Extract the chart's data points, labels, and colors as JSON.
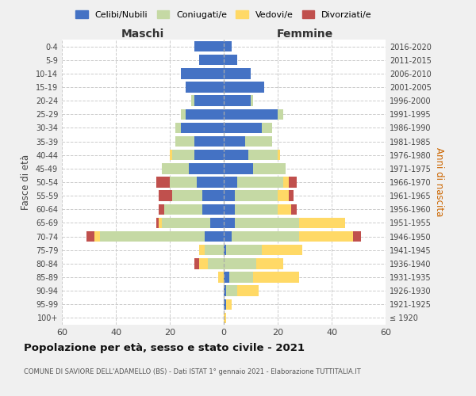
{
  "age_groups": [
    "100+",
    "95-99",
    "90-94",
    "85-89",
    "80-84",
    "75-79",
    "70-74",
    "65-69",
    "60-64",
    "55-59",
    "50-54",
    "45-49",
    "40-44",
    "35-39",
    "30-34",
    "25-29",
    "20-24",
    "15-19",
    "10-14",
    "5-9",
    "0-4"
  ],
  "birth_years": [
    "≤ 1920",
    "1921-1925",
    "1926-1930",
    "1931-1935",
    "1936-1940",
    "1941-1945",
    "1946-1950",
    "1951-1955",
    "1956-1960",
    "1961-1965",
    "1966-1970",
    "1971-1975",
    "1976-1980",
    "1981-1985",
    "1986-1990",
    "1991-1995",
    "1996-2000",
    "2001-2005",
    "2006-2010",
    "2011-2015",
    "2016-2020"
  ],
  "male": {
    "celibe": [
      0,
      0,
      0,
      0,
      0,
      0,
      7,
      5,
      8,
      8,
      10,
      13,
      11,
      11,
      16,
      14,
      11,
      14,
      16,
      9,
      11
    ],
    "coniugato": [
      0,
      0,
      0,
      0,
      6,
      7,
      39,
      18,
      14,
      11,
      10,
      10,
      8,
      7,
      2,
      2,
      1,
      0,
      0,
      0,
      0
    ],
    "vedovo": [
      0,
      0,
      0,
      2,
      3,
      2,
      2,
      1,
      0,
      0,
      0,
      0,
      1,
      0,
      0,
      0,
      0,
      0,
      0,
      0,
      0
    ],
    "divorziato": [
      0,
      0,
      0,
      0,
      2,
      0,
      3,
      1,
      2,
      5,
      5,
      0,
      0,
      0,
      0,
      0,
      0,
      0,
      0,
      0,
      0
    ]
  },
  "female": {
    "nubile": [
      0,
      1,
      1,
      2,
      0,
      1,
      3,
      4,
      4,
      4,
      5,
      11,
      9,
      8,
      14,
      20,
      10,
      15,
      10,
      5,
      3
    ],
    "coniugata": [
      0,
      0,
      4,
      9,
      12,
      13,
      25,
      24,
      16,
      16,
      17,
      12,
      11,
      10,
      4,
      2,
      1,
      0,
      0,
      0,
      0
    ],
    "vedova": [
      1,
      2,
      8,
      17,
      10,
      15,
      20,
      17,
      5,
      4,
      2,
      0,
      1,
      0,
      0,
      0,
      0,
      0,
      0,
      0,
      0
    ],
    "divorziata": [
      0,
      0,
      0,
      0,
      0,
      0,
      3,
      0,
      2,
      2,
      3,
      0,
      0,
      0,
      0,
      0,
      0,
      0,
      0,
      0,
      0
    ]
  },
  "colors": {
    "celibe_nubile": "#4472C4",
    "coniugato_a": "#C5D9A4",
    "vedovo_a": "#FFD966",
    "divorziato_a": "#C0504D"
  },
  "title": "Popolazione per età, sesso e stato civile - 2021",
  "subtitle": "COMUNE DI SAVIORE DELL'ADAMELLO (BS) - Dati ISTAT 1° gennaio 2021 - Elaborazione TUTTITALIA.IT",
  "xlabel_left": "Maschi",
  "xlabel_right": "Femmine",
  "ylabel_left": "Fasce di età",
  "ylabel_right": "Anni di nascita",
  "xlim": 60,
  "background_color": "#f0f0f0",
  "plot_background": "#ffffff",
  "legend_labels": [
    "Celibi/Nubili",
    "Coniugati/e",
    "Vedovi/e",
    "Divorziati/e"
  ]
}
